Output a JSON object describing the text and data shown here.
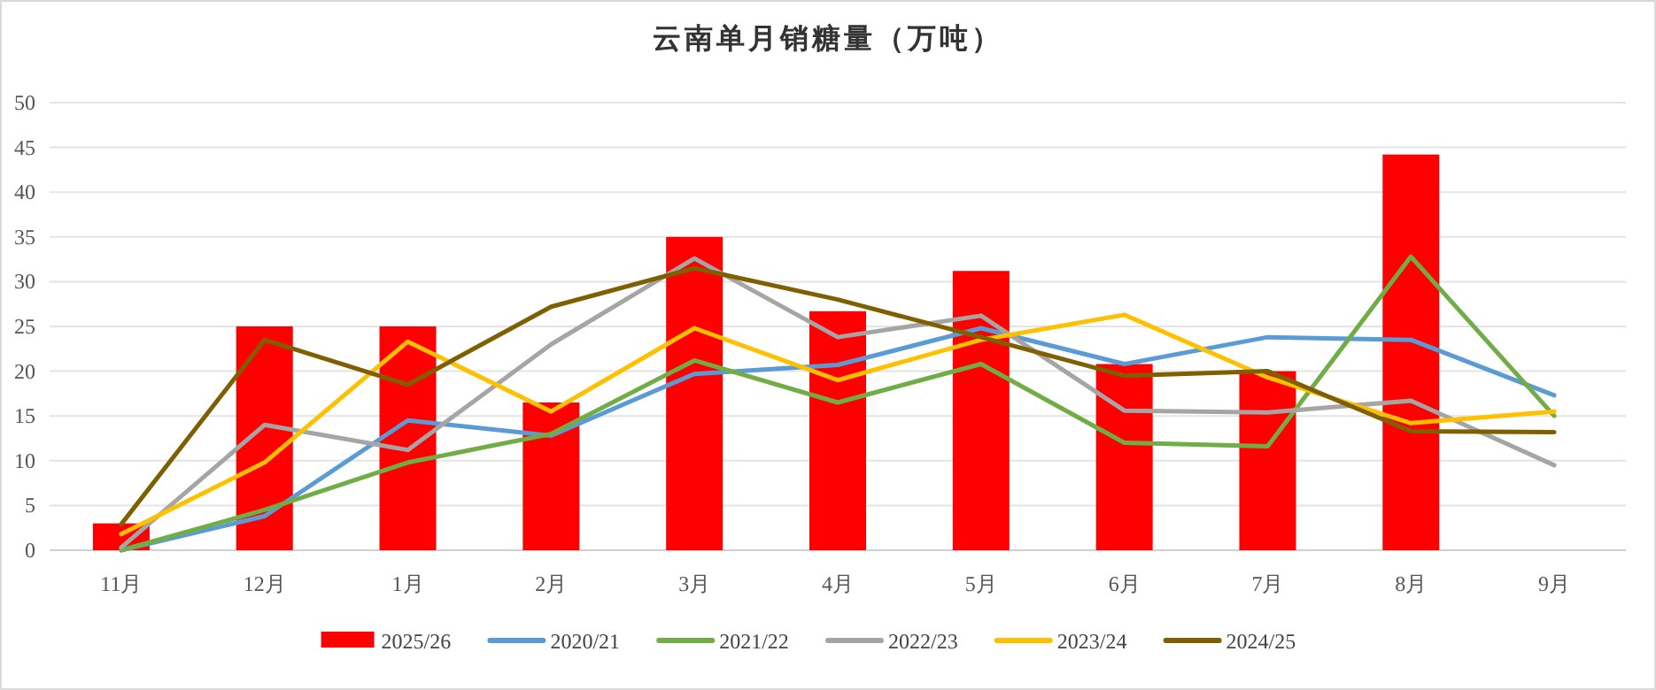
{
  "chart_data": {
    "type": "bar",
    "title": "云南单月销糖量（万吨）",
    "categories": [
      "11月",
      "12月",
      "1月",
      "2月",
      "3月",
      "4月",
      "5月",
      "6月",
      "7月",
      "8月",
      "9月"
    ],
    "series": [
      {
        "name": "2025/26",
        "color": "#ff0000",
        "values": [
          3.0,
          25.0,
          25.0,
          16.5,
          35.0,
          26.7,
          31.2,
          20.8,
          20.0,
          44.2,
          null
        ]
      },
      {
        "name": "2020/21",
        "type": "line",
        "color": "#5b9bd5",
        "values": [
          0,
          3.8,
          14.5,
          12.8,
          19.7,
          20.7,
          24.8,
          20.8,
          23.8,
          23.5,
          17.3
        ]
      },
      {
        "name": "2021/22",
        "type": "line",
        "color": "#70ad47",
        "values": [
          0,
          4.5,
          9.8,
          13.0,
          21.2,
          16.5,
          20.8,
          12.0,
          11.6,
          32.8,
          15.0
        ]
      },
      {
        "name": "2022/23",
        "type": "line",
        "color": "#a5a5a5",
        "values": [
          0.3,
          14.0,
          11.2,
          23.0,
          32.6,
          23.8,
          26.2,
          15.6,
          15.4,
          16.7,
          9.5
        ]
      },
      {
        "name": "2023/24",
        "type": "line",
        "color": "#ffc000",
        "values": [
          1.8,
          9.8,
          23.3,
          15.5,
          24.8,
          19.0,
          23.5,
          26.3,
          19.3,
          14.2,
          15.5
        ]
      },
      {
        "name": "2024/25",
        "type": "line",
        "color": "#7f6000",
        "values": [
          2.9,
          23.5,
          18.5,
          27.2,
          31.5,
          28.0,
          23.8,
          19.5,
          20.0,
          13.3,
          13.2
        ]
      }
    ],
    "ylim": [
      0,
      50
    ],
    "yticks": [
      0,
      5,
      10,
      15,
      20,
      25,
      30,
      35,
      40,
      45,
      50
    ],
    "grid": "y",
    "legend": "bottom"
  }
}
